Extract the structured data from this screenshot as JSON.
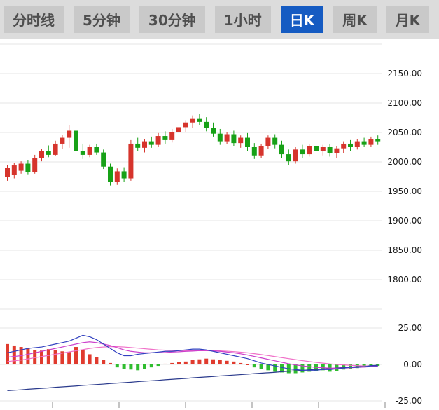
{
  "toolbar": {
    "tabs": [
      {
        "label": "分时线",
        "active": false
      },
      {
        "label": "5分钟",
        "active": false
      },
      {
        "label": "30分钟",
        "active": false
      },
      {
        "label": "1小时",
        "active": false
      },
      {
        "label": "日K",
        "active": true
      },
      {
        "label": "周K",
        "active": false
      },
      {
        "label": "月K",
        "active": false
      }
    ]
  },
  "colors": {
    "up": "#d6342c",
    "down": "#17a117",
    "hist_up": "#e03b2e",
    "hist_down": "#2fbd2f",
    "active_tab_bg": "#155bc2",
    "active_tab_text": "#ffffff",
    "tab_bg": "#c9c9c9",
    "tab_text": "#4f4f4f",
    "toolbar_bg": "#dcdcdc",
    "grid": "#e4e4e4",
    "axis_text": "#1a1a1a",
    "macd_lines": {
      "dif": "#3140c0",
      "dea": "#cc3fcc",
      "m3": "#f070c8",
      "m4": "#2a3a8c"
    }
  },
  "chart_data": {
    "type": "candlestick+macd",
    "price_axis": {
      "labels": [
        "2150.00",
        "2100.00",
        "2050.00",
        "2000.00",
        "1950.00",
        "1900.00",
        "1850.00",
        "1800.00"
      ],
      "values": [
        2150,
        2100,
        2050,
        2000,
        1950,
        1900,
        1850,
        1800
      ],
      "grid_values": [
        2200,
        2150,
        2100,
        2050,
        2000,
        1950,
        1900,
        1850,
        1800,
        1750
      ]
    },
    "macd_axis": {
      "labels": [
        "25.00",
        "0.00",
        "-25.00"
      ],
      "values": [
        25,
        0,
        -25
      ]
    },
    "candles": [
      [
        1975,
        1995,
        1968,
        1990
      ],
      [
        1978,
        1998,
        1972,
        1994
      ],
      [
        1985,
        2001,
        1980,
        1997
      ],
      [
        1997,
        2003,
        1979,
        1983
      ],
      [
        1983,
        2012,
        1980,
        2007
      ],
      [
        2007,
        2022,
        2001,
        2018
      ],
      [
        2018,
        2028,
        2008,
        2012
      ],
      [
        2012,
        2036,
        2010,
        2031
      ],
      [
        2031,
        2046,
        2022,
        2041
      ],
      [
        2041,
        2062,
        2024,
        2053
      ],
      [
        2053,
        2140,
        2012,
        2019
      ],
      [
        2019,
        2031,
        2005,
        2012
      ],
      [
        2012,
        2029,
        2008,
        2025
      ],
      [
        2025,
        2031,
        2012,
        2016
      ],
      [
        2016,
        2021,
        1988,
        1992
      ],
      [
        1992,
        1997,
        1960,
        1966
      ],
      [
        1966,
        1989,
        1961,
        1984
      ],
      [
        1984,
        1991,
        1966,
        1972
      ],
      [
        1972,
        2037,
        1968,
        2031
      ],
      [
        2031,
        2041,
        2018,
        2024
      ],
      [
        2024,
        2039,
        2016,
        2035
      ],
      [
        2035,
        2043,
        2024,
        2029
      ],
      [
        2029,
        2049,
        2025,
        2044
      ],
      [
        2044,
        2052,
        2031,
        2037
      ],
      [
        2037,
        2056,
        2033,
        2051
      ],
      [
        2051,
        2063,
        2043,
        2059
      ],
      [
        2059,
        2071,
        2051,
        2067
      ],
      [
        2067,
        2079,
        2058,
        2073
      ],
      [
        2073,
        2081,
        2062,
        2068
      ],
      [
        2068,
        2076,
        2052,
        2058
      ],
      [
        2058,
        2067,
        2043,
        2048
      ],
      [
        2048,
        2056,
        2029,
        2035
      ],
      [
        2035,
        2051,
        2030,
        2047
      ],
      [
        2047,
        2053,
        2027,
        2032
      ],
      [
        2032,
        2045,
        2024,
        2041
      ],
      [
        2041,
        2049,
        2019,
        2025
      ],
      [
        2025,
        2032,
        2005,
        2011
      ],
      [
        2011,
        2031,
        2007,
        2027
      ],
      [
        2027,
        2045,
        2022,
        2041
      ],
      [
        2041,
        2047,
        2023,
        2029
      ],
      [
        2029,
        2036,
        2007,
        2013
      ],
      [
        2013,
        2021,
        1995,
        2001
      ],
      [
        2001,
        2025,
        1997,
        2021
      ],
      [
        2021,
        2029,
        2007,
        2013
      ],
      [
        2013,
        2031,
        2009,
        2027
      ],
      [
        2027,
        2033,
        2013,
        2018
      ],
      [
        2018,
        2029,
        2011,
        2025
      ],
      [
        2025,
        2031,
        2009,
        2015
      ],
      [
        2015,
        2027,
        2007,
        2023
      ],
      [
        2023,
        2035,
        2015,
        2031
      ],
      [
        2031,
        2037,
        2019,
        2025
      ],
      [
        2025,
        2039,
        2021,
        2035
      ],
      [
        2035,
        2041,
        2025,
        2029
      ],
      [
        2029,
        2043,
        2025,
        2039
      ],
      [
        2039,
        2045,
        2029,
        2035
      ]
    ],
    "macd": {
      "histogram": [
        14,
        13,
        12,
        11,
        10,
        9.5,
        10.5,
        10,
        9,
        8.5,
        12,
        10,
        7,
        5,
        3,
        1,
        -2,
        -3,
        -3.5,
        -4,
        -3,
        -2,
        -1,
        0.5,
        1,
        1.5,
        2,
        3,
        3.5,
        4,
        3.5,
        3,
        2.5,
        2,
        1,
        0,
        -2,
        -3,
        -4,
        -5,
        -5.5,
        -6,
        -6,
        -5.5,
        -5,
        -4.5,
        -4,
        -5,
        -4.5,
        -3.5,
        -3,
        -2.5,
        -2,
        -1.5,
        -1
      ],
      "dif": [
        8,
        9,
        10,
        11,
        11.5,
        12,
        13,
        14,
        15,
        16,
        18,
        20,
        19,
        17,
        14,
        11,
        8,
        6,
        6,
        7,
        7.5,
        8,
        8.5,
        9,
        9,
        9.5,
        10,
        10.5,
        10.5,
        10,
        9,
        8,
        7,
        6,
        5,
        4,
        2.5,
        1,
        0,
        -1,
        -2,
        -3,
        -3.5,
        -4,
        -4,
        -4,
        -3.5,
        -3.5,
        -3,
        -2.5,
        -2,
        -2,
        -1.5,
        -1,
        -1
      ],
      "dea": [
        5,
        5.5,
        6,
        7,
        8,
        9,
        10,
        11,
        12,
        13,
        14,
        15,
        15.5,
        15,
        14,
        13,
        11.5,
        10,
        9,
        8.5,
        8,
        8,
        8,
        8.2,
        8.5,
        8.7,
        9,
        9.2,
        9.5,
        9.5,
        9.3,
        9,
        8.5,
        8,
        7.3,
        6.5,
        5.5,
        4.5,
        3.5,
        2.5,
        1.5,
        0.5,
        -0.3,
        -1,
        -1.5,
        -2,
        -2.3,
        -2.5,
        -2.6,
        -2.5,
        -2.3,
        -2,
        -1.8,
        -1.5,
        -1.2
      ],
      "m3": [
        2,
        2.5,
        3,
        3.8,
        4.6,
        5.4,
        6.2,
        7,
        7.8,
        8.6,
        9.4,
        10.2,
        11,
        11.6,
        12,
        12.2,
        12.2,
        12,
        11.6,
        11.2,
        10.8,
        10.4,
        10,
        9.8,
        9.6,
        9.5,
        9.4,
        9.4,
        9.4,
        9.4,
        9.4,
        9.3,
        9.1,
        8.8,
        8.4,
        8,
        7.4,
        6.8,
        6.1,
        5.4,
        4.7,
        4,
        3.3,
        2.6,
        2,
        1.4,
        0.9,
        0.4,
        0,
        -0.3,
        -0.6,
        -0.8,
        -1,
        -1.1,
        -1.2
      ],
      "m4": [
        -18,
        -17.7,
        -17.4,
        -17,
        -16.7,
        -16.4,
        -16.1,
        -15.7,
        -15.4,
        -15.1,
        -14.8,
        -14.4,
        -14.1,
        -13.8,
        -13.5,
        -13.1,
        -12.8,
        -12.5,
        -12.2,
        -11.8,
        -11.5,
        -11.2,
        -10.9,
        -10.5,
        -10.2,
        -9.9,
        -9.6,
        -9.2,
        -8.9,
        -8.6,
        -8.3,
        -7.9,
        -7.6,
        -7.3,
        -7,
        -6.7,
        -6.3,
        -6,
        -5.7,
        -5.4,
        -5,
        -4.7,
        -4.4,
        -4.1,
        -3.7,
        -3.4,
        -3.1,
        -2.8,
        -2.4,
        -2.1,
        -1.8,
        -1.5,
        -1.1,
        -0.8,
        -0.5
      ]
    }
  }
}
